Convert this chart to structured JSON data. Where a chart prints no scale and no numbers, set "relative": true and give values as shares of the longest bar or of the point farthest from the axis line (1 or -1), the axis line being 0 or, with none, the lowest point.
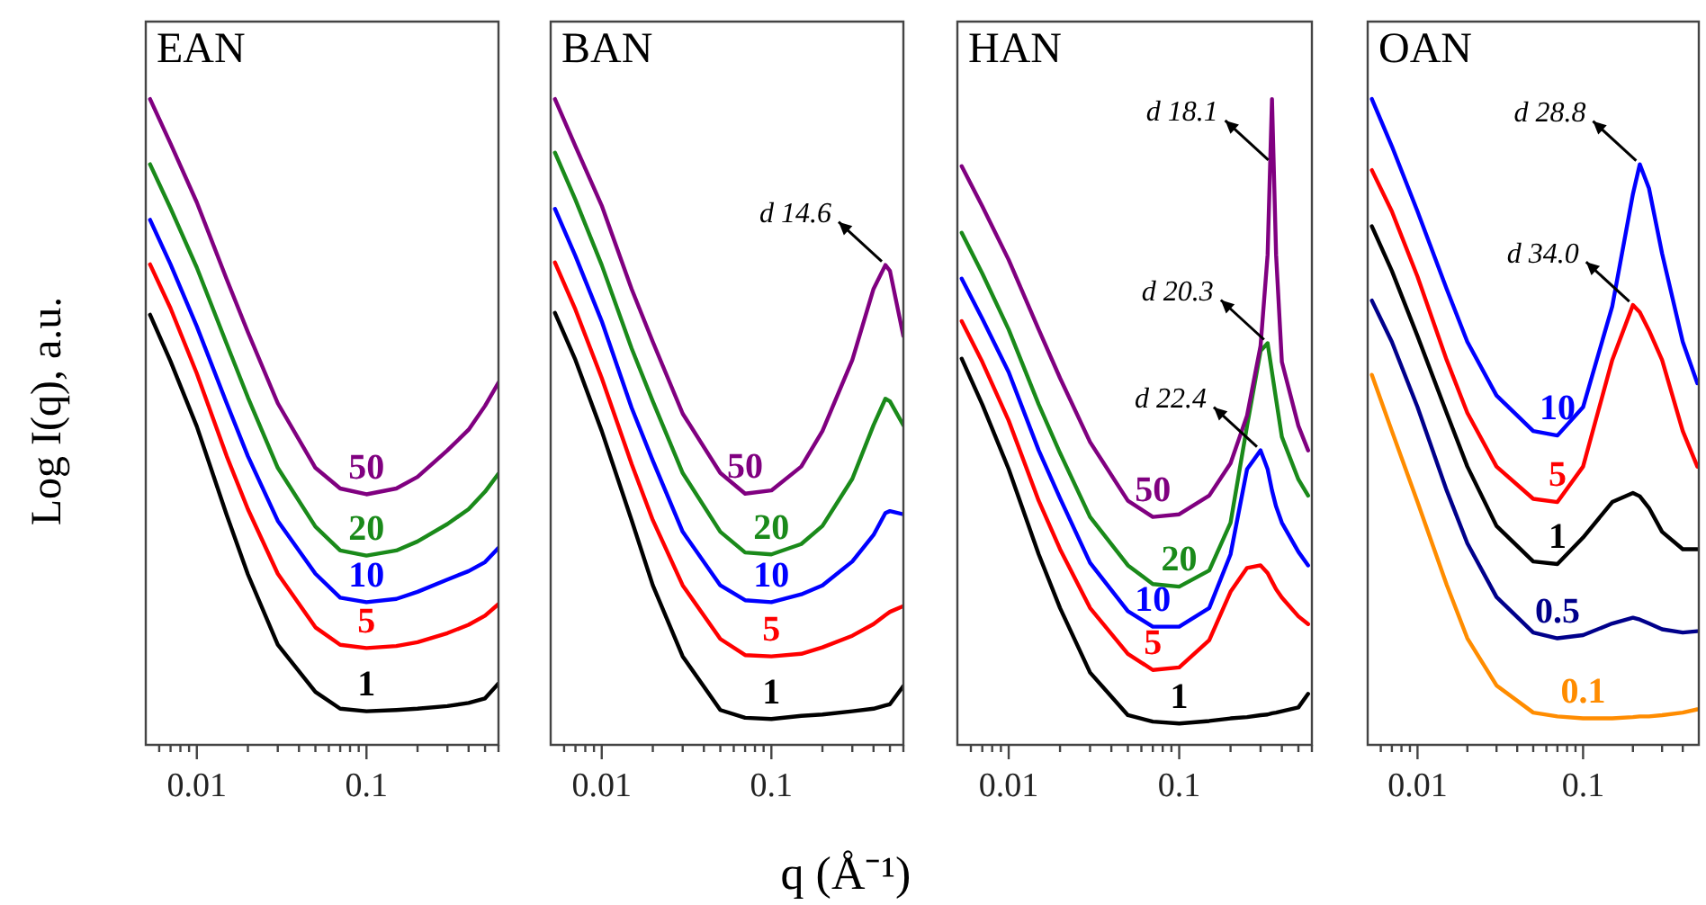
{
  "chart_data": [
    {
      "type": "line",
      "title": "EAN",
      "ylabel": "Log I(q), a.u.",
      "relative": true,
      "log": "x",
      "tick_labels": "x",
      "marker": "none",
      "xlim": [
        0.005,
        0.6
      ],
      "xticks": [
        {
          "value": 0.006,
          "label": null
        },
        {
          "value": 0.007,
          "label": null
        },
        {
          "value": 0.008,
          "label": null
        },
        {
          "value": 0.009,
          "label": null
        },
        {
          "value": 0.01,
          "label": "0.01"
        },
        {
          "value": 0.02,
          "label": null
        },
        {
          "value": 0.03,
          "label": null
        },
        {
          "value": 0.04,
          "label": null
        },
        {
          "value": 0.05,
          "label": null
        },
        {
          "value": 0.06,
          "label": null
        },
        {
          "value": 0.07,
          "label": null
        },
        {
          "value": 0.08,
          "label": null
        },
        {
          "value": 0.09,
          "label": null
        },
        {
          "value": 0.1,
          "label": "0.1"
        },
        {
          "value": 0.2,
          "label": null
        },
        {
          "value": 0.3,
          "label": null
        },
        {
          "value": 0.4,
          "label": null
        },
        {
          "value": 0.5,
          "label": null
        },
        {
          "value": 0.6,
          "label": null
        }
      ],
      "x": [
        0.0053,
        0.007,
        0.01,
        0.015,
        0.02,
        0.03,
        0.05,
        0.07,
        0.1,
        0.15,
        0.2,
        0.3,
        0.4,
        0.5,
        0.6
      ],
      "series": [
        {
          "name": "50",
          "color": "#800080",
          "values": [
            1.0,
            0.931,
            0.84,
            0.721,
            0.639,
            0.529,
            0.429,
            0.397,
            0.388,
            0.397,
            0.415,
            0.456,
            0.488,
            0.525,
            0.561
          ]
        },
        {
          "name": "20",
          "color": "#1a8a1a",
          "values": [
            0.899,
            0.831,
            0.739,
            0.621,
            0.538,
            0.429,
            0.338,
            0.301,
            0.293,
            0.301,
            0.315,
            0.342,
            0.365,
            0.392,
            0.42
          ]
        },
        {
          "name": "10",
          "color": "#0000ff",
          "values": [
            0.813,
            0.744,
            0.648,
            0.529,
            0.447,
            0.347,
            0.265,
            0.228,
            0.221,
            0.226,
            0.237,
            0.256,
            0.269,
            0.283,
            0.305
          ]
        },
        {
          "name": "5",
          "color": "#ff0000",
          "values": [
            0.744,
            0.676,
            0.575,
            0.447,
            0.365,
            0.265,
            0.182,
            0.155,
            0.15,
            0.153,
            0.159,
            0.173,
            0.186,
            0.2,
            0.218
          ]
        },
        {
          "name": "1",
          "color": "#000000",
          "values": [
            0.666,
            0.594,
            0.493,
            0.356,
            0.264,
            0.155,
            0.082,
            0.056,
            0.052,
            0.054,
            0.056,
            0.06,
            0.065,
            0.072,
            0.095
          ]
        }
      ]
    },
    {
      "type": "line",
      "title": "BAN",
      "xlabel": "q (Å⁻¹)",
      "relative": true,
      "log": "x",
      "tick_labels": "x",
      "marker": "none",
      "xlim": [
        0.005,
        0.6
      ],
      "xticks": [
        {
          "value": 0.006,
          "label": null
        },
        {
          "value": 0.007,
          "label": null
        },
        {
          "value": 0.008,
          "label": null
        },
        {
          "value": 0.009,
          "label": null
        },
        {
          "value": 0.01,
          "label": "0.01"
        },
        {
          "value": 0.02,
          "label": null
        },
        {
          "value": 0.03,
          "label": null
        },
        {
          "value": 0.04,
          "label": null
        },
        {
          "value": 0.05,
          "label": null
        },
        {
          "value": 0.06,
          "label": null
        },
        {
          "value": 0.07,
          "label": null
        },
        {
          "value": 0.08,
          "label": null
        },
        {
          "value": 0.09,
          "label": null
        },
        {
          "value": 0.1,
          "label": "0.1"
        },
        {
          "value": 0.2,
          "label": null
        },
        {
          "value": 0.3,
          "label": null
        },
        {
          "value": 0.4,
          "label": null
        },
        {
          "value": 0.5,
          "label": null
        },
        {
          "value": 0.6,
          "label": null
        }
      ],
      "x": [
        0.0053,
        0.007,
        0.01,
        0.015,
        0.02,
        0.03,
        0.05,
        0.07,
        0.1,
        0.15,
        0.2,
        0.3,
        0.4,
        0.47,
        0.5,
        0.6
      ],
      "annotations": [
        {
          "text": "d 14.6",
          "x": 0.47,
          "y": 0.743
        }
      ],
      "series": [
        {
          "name": "50",
          "color": "#800080",
          "values": [
            1.0,
            0.927,
            0.835,
            0.706,
            0.624,
            0.513,
            0.421,
            0.389,
            0.394,
            0.431,
            0.486,
            0.596,
            0.706,
            0.743,
            0.734,
            0.633
          ]
        },
        {
          "name": "20",
          "color": "#1a8a1a",
          "values": [
            0.917,
            0.844,
            0.743,
            0.614,
            0.532,
            0.421,
            0.33,
            0.298,
            0.295,
            0.311,
            0.339,
            0.412,
            0.495,
            0.536,
            0.532,
            0.495
          ]
        },
        {
          "name": "10",
          "color": "#0000ff",
          "values": [
            0.83,
            0.757,
            0.656,
            0.522,
            0.44,
            0.33,
            0.247,
            0.224,
            0.221,
            0.233,
            0.247,
            0.284,
            0.325,
            0.359,
            0.362,
            0.357
          ]
        },
        {
          "name": "5",
          "color": "#ff0000",
          "values": [
            0.747,
            0.674,
            0.568,
            0.435,
            0.348,
            0.247,
            0.164,
            0.139,
            0.137,
            0.141,
            0.151,
            0.169,
            0.187,
            0.201,
            0.206,
            0.215
          ]
        },
        {
          "name": "1",
          "color": "#000000",
          "values": [
            0.669,
            0.596,
            0.486,
            0.348,
            0.247,
            0.137,
            0.054,
            0.042,
            0.04,
            0.045,
            0.047,
            0.052,
            0.056,
            0.061,
            0.063,
            0.091
          ]
        }
      ]
    },
    {
      "type": "line",
      "title": "HAN",
      "relative": true,
      "log": "x",
      "tick_labels": "x",
      "marker": "none",
      "xlim": [
        0.005,
        0.6
      ],
      "xticks": [
        {
          "value": 0.006,
          "label": null
        },
        {
          "value": 0.007,
          "label": null
        },
        {
          "value": 0.008,
          "label": null
        },
        {
          "value": 0.009,
          "label": null
        },
        {
          "value": 0.01,
          "label": "0.01"
        },
        {
          "value": 0.02,
          "label": null
        },
        {
          "value": 0.03,
          "label": null
        },
        {
          "value": 0.04,
          "label": null
        },
        {
          "value": 0.05,
          "label": null
        },
        {
          "value": 0.06,
          "label": null
        },
        {
          "value": 0.07,
          "label": null
        },
        {
          "value": 0.08,
          "label": null
        },
        {
          "value": 0.09,
          "label": null
        },
        {
          "value": 0.1,
          "label": "0.1"
        },
        {
          "value": 0.2,
          "label": null
        },
        {
          "value": 0.3,
          "label": null
        },
        {
          "value": 0.4,
          "label": null
        },
        {
          "value": 0.5,
          "label": null
        },
        {
          "value": 0.6,
          "label": null
        }
      ],
      "x": [
        0.0053,
        0.007,
        0.01,
        0.015,
        0.02,
        0.03,
        0.05,
        0.07,
        0.1,
        0.15,
        0.2,
        0.25,
        0.3,
        0.33,
        0.35,
        0.37,
        0.4,
        0.5,
        0.57
      ],
      "annotations": [
        {
          "text": "d 18.1",
          "x": 0.35,
          "y": 0.9
        },
        {
          "text": "d 20.3",
          "x": 0.33,
          "y": 0.622
        },
        {
          "text": "d 22.4",
          "x": 0.3,
          "y": 0.456
        }
      ],
      "series": [
        {
          "name": "50",
          "color": "#800080",
          "values": [
            0.896,
            0.834,
            0.751,
            0.643,
            0.568,
            0.469,
            0.378,
            0.353,
            0.357,
            0.386,
            0.436,
            0.51,
            0.618,
            0.759,
            1.0,
            0.759,
            0.593,
            0.494,
            0.456
          ]
        },
        {
          "name": "20",
          "color": "#1a8a1a",
          "values": [
            0.793,
            0.73,
            0.643,
            0.527,
            0.452,
            0.353,
            0.278,
            0.249,
            0.245,
            0.27,
            0.344,
            0.494,
            0.61,
            0.622,
            0.577,
            0.535,
            0.477,
            0.411,
            0.386
          ]
        },
        {
          "name": "10",
          "color": "#0000ff",
          "values": [
            0.722,
            0.66,
            0.577,
            0.456,
            0.382,
            0.282,
            0.207,
            0.183,
            0.183,
            0.212,
            0.295,
            0.427,
            0.456,
            0.427,
            0.394,
            0.369,
            0.344,
            0.299,
            0.278
          ]
        },
        {
          "name": "5",
          "color": "#ff0000",
          "values": [
            0.656,
            0.593,
            0.502,
            0.378,
            0.303,
            0.212,
            0.141,
            0.116,
            0.12,
            0.162,
            0.237,
            0.274,
            0.278,
            0.266,
            0.253,
            0.241,
            0.228,
            0.199,
            0.187
          ]
        },
        {
          "name": "1",
          "color": "#000000",
          "values": [
            0.598,
            0.527,
            0.427,
            0.295,
            0.212,
            0.112,
            0.046,
            0.036,
            0.033,
            0.037,
            0.041,
            0.043,
            0.046,
            0.047,
            0.049,
            0.05,
            0.052,
            0.058,
            0.079
          ]
        }
      ]
    },
    {
      "type": "line",
      "title": "OAN",
      "relative": true,
      "log": "x",
      "tick_labels": "x",
      "marker": "none",
      "xlim": [
        0.005,
        0.5
      ],
      "xticks": [
        {
          "value": 0.006,
          "label": null
        },
        {
          "value": 0.007,
          "label": null
        },
        {
          "value": 0.008,
          "label": null
        },
        {
          "value": 0.009,
          "label": null
        },
        {
          "value": 0.01,
          "label": "0.01"
        },
        {
          "value": 0.02,
          "label": null
        },
        {
          "value": 0.03,
          "label": null
        },
        {
          "value": 0.04,
          "label": null
        },
        {
          "value": 0.05,
          "label": null
        },
        {
          "value": 0.06,
          "label": null
        },
        {
          "value": 0.07,
          "label": null
        },
        {
          "value": 0.08,
          "label": null
        },
        {
          "value": 0.09,
          "label": null
        },
        {
          "value": 0.1,
          "label": "0.1"
        },
        {
          "value": 0.2,
          "label": null
        },
        {
          "value": 0.3,
          "label": null
        },
        {
          "value": 0.4,
          "label": null
        }
      ],
      "x": [
        0.0053,
        0.007,
        0.01,
        0.015,
        0.02,
        0.03,
        0.05,
        0.07,
        0.1,
        0.15,
        0.2,
        0.22,
        0.25,
        0.3,
        0.4,
        0.49
      ],
      "annotations": [
        {
          "text": "d 28.8",
          "x": 0.22,
          "y": 0.899
        },
        {
          "text": "d 34.0",
          "x": 0.2,
          "y": 0.681
        }
      ],
      "series": [
        {
          "name": "10",
          "color": "#0000ff",
          "values": [
            1.0,
            0.927,
            0.826,
            0.706,
            0.624,
            0.541,
            0.486,
            0.479,
            0.523,
            0.679,
            0.853,
            0.899,
            0.862,
            0.761,
            0.624,
            0.56
          ]
        },
        {
          "name": "5",
          "color": "#ff0000",
          "values": [
            0.89,
            0.826,
            0.725,
            0.596,
            0.514,
            0.431,
            0.381,
            0.376,
            0.431,
            0.596,
            0.681,
            0.67,
            0.642,
            0.596,
            0.486,
            0.431
          ]
        },
        {
          "name": "1",
          "color": "#000000",
          "values": [
            0.803,
            0.734,
            0.633,
            0.514,
            0.431,
            0.339,
            0.284,
            0.28,
            0.321,
            0.376,
            0.39,
            0.385,
            0.367,
            0.33,
            0.303,
            0.303
          ]
        },
        {
          "name": "0.5",
          "color": "#00008b",
          "values": [
            0.688,
            0.624,
            0.523,
            0.394,
            0.312,
            0.229,
            0.174,
            0.165,
            0.17,
            0.188,
            0.197,
            0.194,
            0.188,
            0.179,
            0.174,
            0.176
          ]
        },
        {
          "name": "0.1",
          "color": "#ff8c00",
          "values": [
            0.573,
            0.486,
            0.376,
            0.248,
            0.165,
            0.092,
            0.05,
            0.044,
            0.041,
            0.041,
            0.043,
            0.044,
            0.044,
            0.046,
            0.05,
            0.055
          ]
        }
      ]
    }
  ]
}
